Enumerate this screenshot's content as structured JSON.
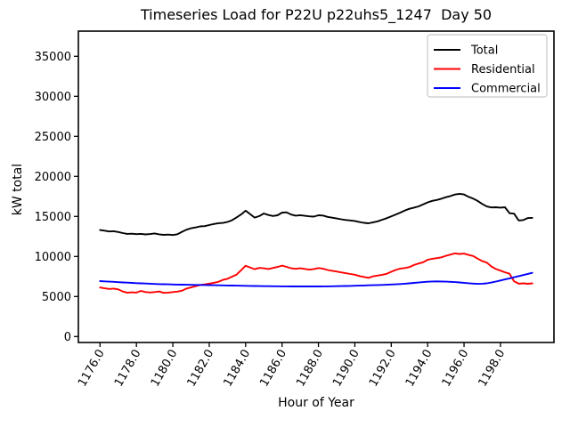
{
  "title": "Timeseries Load for P22U p22uhs5_1247  Day 50",
  "chart_data": {
    "type": "line",
    "title": "Timeseries Load for P22U p22uhs5_1247  Day 50",
    "xlabel": "Hour of Year",
    "ylabel": "kW total",
    "xlim": [
      1174.81,
      1200.94
    ],
    "ylim": [
      -744,
      38144
    ],
    "grid": false,
    "legend_position": "upper right",
    "xticks": [
      1176,
      1178,
      1180,
      1182,
      1184,
      1186,
      1188,
      1190,
      1192,
      1194,
      1196,
      1198
    ],
    "xtick_labels": [
      "1176.0",
      "1178.0",
      "1180.0",
      "1182.0",
      "1184.0",
      "1186.0",
      "1188.0",
      "1190.0",
      "1192.0",
      "1194.0",
      "1196.0",
      "1198.0"
    ],
    "yticks": [
      0,
      5000,
      10000,
      15000,
      20000,
      25000,
      30000,
      35000
    ],
    "ytick_labels": [
      "0",
      "5000",
      "10000",
      "15000",
      "20000",
      "25000",
      "30000",
      "35000"
    ],
    "x_start": 1176.0,
    "x_step": 0.25,
    "n_points": 96,
    "series": [
      {
        "name": "Total",
        "color": "#000000",
        "values": [
          13300,
          13220,
          13120,
          13160,
          13060,
          12920,
          12820,
          12850,
          12790,
          12820,
          12760,
          12800,
          12880,
          12770,
          12700,
          12730,
          12680,
          12780,
          13080,
          13350,
          13520,
          13620,
          13760,
          13790,
          13920,
          14060,
          14160,
          14190,
          14310,
          14520,
          14880,
          15240,
          15720,
          15280,
          14860,
          15050,
          15370,
          15180,
          15060,
          15140,
          15480,
          15510,
          15230,
          15100,
          15160,
          15080,
          15010,
          14980,
          15150,
          15110,
          14940,
          14850,
          14750,
          14640,
          14560,
          14500,
          14430,
          14300,
          14200,
          14140,
          14270,
          14390,
          14590,
          14780,
          15010,
          15250,
          15480,
          15740,
          15960,
          16100,
          16260,
          16500,
          16760,
          16940,
          17060,
          17210,
          17400,
          17550,
          17730,
          17820,
          17750,
          17440,
          17220,
          16930,
          16560,
          16250,
          16120,
          16150,
          16100,
          16150,
          15400,
          15350,
          14500,
          14550,
          14800,
          14820
        ]
      },
      {
        "name": "Residential",
        "color": "#ff0000",
        "values": [
          6120,
          6020,
          5950,
          5990,
          5890,
          5620,
          5470,
          5520,
          5490,
          5700,
          5560,
          5500,
          5560,
          5620,
          5460,
          5490,
          5560,
          5610,
          5720,
          5990,
          6130,
          6290,
          6440,
          6510,
          6610,
          6710,
          6830,
          7080,
          7210,
          7480,
          7730,
          8280,
          8850,
          8620,
          8410,
          8570,
          8520,
          8430,
          8570,
          8690,
          8860,
          8700,
          8520,
          8460,
          8520,
          8450,
          8360,
          8430,
          8560,
          8470,
          8310,
          8210,
          8120,
          8010,
          7910,
          7810,
          7720,
          7560,
          7440,
          7330,
          7520,
          7610,
          7710,
          7830,
          8090,
          8320,
          8490,
          8560,
          8680,
          8930,
          9120,
          9280,
          9590,
          9710,
          9790,
          9890,
          10080,
          10230,
          10390,
          10310,
          10360,
          10190,
          10060,
          9720,
          9420,
          9230,
          8760,
          8430,
          8230,
          8020,
          7850,
          6900,
          6600,
          6640,
          6590,
          6650
        ]
      },
      {
        "name": "Commercial",
        "color": "#0000ff",
        "values": [
          6920,
          6890,
          6860,
          6830,
          6790,
          6760,
          6730,
          6700,
          6670,
          6640,
          6620,
          6600,
          6570,
          6550,
          6530,
          6520,
          6500,
          6490,
          6480,
          6470,
          6460,
          6450,
          6440,
          6430,
          6420,
          6410,
          6400,
          6390,
          6380,
          6370,
          6355,
          6340,
          6330,
          6320,
          6310,
          6300,
          6290,
          6285,
          6280,
          6275,
          6270,
          6265,
          6260,
          6258,
          6256,
          6255,
          6255,
          6256,
          6258,
          6262,
          6268,
          6275,
          6285,
          6295,
          6310,
          6325,
          6345,
          6360,
          6380,
          6395,
          6410,
          6430,
          6450,
          6470,
          6495,
          6525,
          6560,
          6600,
          6650,
          6700,
          6750,
          6800,
          6850,
          6880,
          6890,
          6880,
          6860,
          6830,
          6800,
          6760,
          6710,
          6660,
          6610,
          6580,
          6600,
          6650,
          6750,
          6870,
          7000,
          7130,
          7270,
          7400,
          7540,
          7680,
          7820,
          7960
        ]
      }
    ]
  }
}
